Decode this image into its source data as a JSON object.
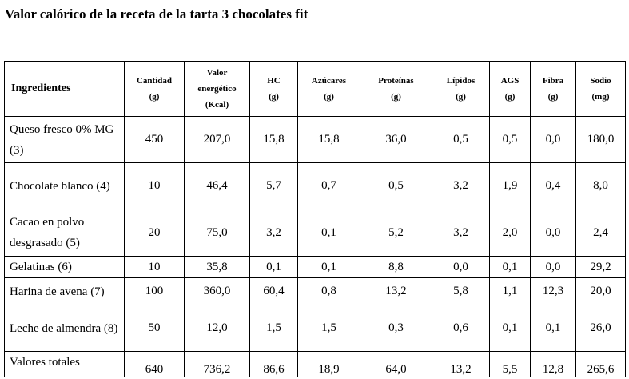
{
  "title": "Valor calórico de la receta de la tarta 3 chocolates fit",
  "headers": [
    [
      "Ingredientes"
    ],
    [
      "Cantidad",
      "(g)"
    ],
    [
      "Valor",
      "energético",
      "(Kcal)"
    ],
    [
      "HC",
      "(g)"
    ],
    [
      "Azúcares",
      "(g)"
    ],
    [
      "Proteínas",
      "(g)"
    ],
    [
      "Lípidos",
      "(g)"
    ],
    [
      "AGS",
      "(g)"
    ],
    [
      "Fibra",
      "(g)"
    ],
    [
      "Sodio",
      "(mg)"
    ]
  ],
  "rows": [
    [
      "Queso fresco 0% MG (3)",
      "450",
      "207,0",
      "15,8",
      "15,8",
      "36,0",
      "0,5",
      "0,5",
      "0,0",
      "180,0"
    ],
    [
      "Chocolate blanco (4)",
      "10",
      "46,4",
      "5,7",
      "0,7",
      "0,5",
      "3,2",
      "1,9",
      "0,4",
      "8,0"
    ],
    [
      "Cacao en polvo desgrasado (5)",
      "20",
      "75,0",
      "3,2",
      "0,1",
      "5,2",
      "3,2",
      "2,0",
      "0,0",
      "2,4"
    ],
    [
      "Gelatinas (6)",
      "10",
      "35,8",
      "0,1",
      "0,1",
      "8,8",
      "0,0",
      "0,1",
      "0,0",
      "29,2"
    ],
    [
      "Harina de avena (7)",
      "100",
      "360,0",
      "60,4",
      "0,8",
      "13,2",
      "5,8",
      "1,1",
      "12,3",
      "20,0"
    ],
    [
      "Leche de almendra (8)",
      "50",
      "12,0",
      "1,5",
      "1,5",
      "0,3",
      "0,6",
      "0,1",
      "0,1",
      "26,0"
    ],
    [
      "Valores totales",
      "640",
      "736,2",
      "86,6",
      "18,9",
      "64,0",
      "13,2",
      "5,5",
      "12,8",
      "265,6"
    ]
  ]
}
